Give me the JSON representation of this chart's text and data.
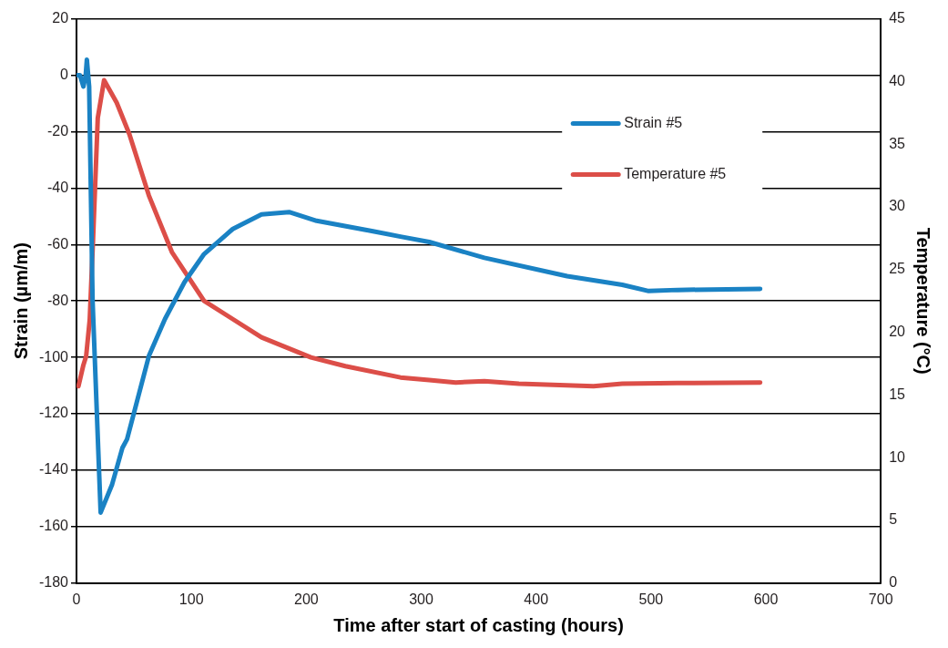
{
  "chart_data": {
    "type": "line",
    "xlabel": "Time after start of casting (hours)",
    "ylabel": "Strain (µm/m)",
    "y2label": "Temperature (°C)",
    "xlim": [
      0,
      700
    ],
    "xticks": [
      0,
      100,
      200,
      300,
      400,
      500,
      600,
      700
    ],
    "ylim": [
      -180,
      20
    ],
    "yticks": [
      -180,
      -160,
      -140,
      -120,
      -100,
      -80,
      -60,
      -40,
      -20,
      0,
      20
    ],
    "y2lim": [
      0,
      45
    ],
    "y2ticks": [
      0,
      5,
      10,
      15,
      20,
      25,
      30,
      35,
      40,
      45
    ],
    "grid": "y",
    "legend": "top right",
    "marker": "none",
    "line_style": "solid",
    "series": [
      {
        "name": "Strain #5",
        "color": "#1a82c4",
        "x": [
          0,
          3,
          6,
          8,
          9,
          11,
          14,
          21,
          31,
          40,
          44,
          63,
          77,
          94,
          111,
          136,
          161,
          185,
          209,
          257,
          282,
          307,
          355,
          427,
          475,
          498,
          523,
          595
        ],
        "values": [
          0,
          0,
          -4,
          0,
          5.5,
          -4,
          -80,
          -155,
          -145,
          -132,
          -129,
          -99.5,
          -86.4,
          -73.3,
          -63.4,
          -54.5,
          -49.3,
          -48.5,
          -51.6,
          -55.2,
          -57.2,
          -59.1,
          -64.7,
          -71.2,
          -74.3,
          -76.5,
          -76.1,
          -75.7
        ]
      },
      {
        "name": "Temperature #5",
        "color": "#dc4e48",
        "axis": "y2",
        "x": [
          1.7,
          6,
          8.4,
          11.5,
          14.3,
          18.5,
          24,
          35,
          46,
          63,
          83,
          111,
          161,
          204,
          234,
          282,
          307,
          330,
          355,
          385,
          450,
          475,
          523,
          595
        ],
        "values": [
          15.7,
          17.4,
          18.1,
          21,
          27.2,
          37.1,
          40.1,
          38.3,
          35.8,
          30.9,
          26.4,
          22.5,
          19.6,
          18,
          17.3,
          16.4,
          16.2,
          16,
          16.1,
          15.9,
          15.7,
          15.9,
          15.95,
          16
        ]
      }
    ]
  }
}
